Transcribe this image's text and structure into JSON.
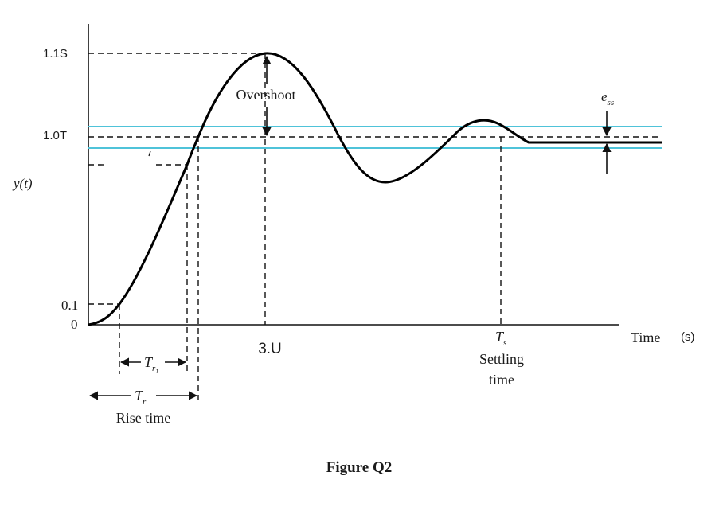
{
  "y_ticks": {
    "top": "1.1S",
    "final": "1.0T",
    "ten_percent": "0.1",
    "zero": "0"
  },
  "y_axis_label": "y(t)",
  "x_axis_label": "Time",
  "x_axis_unit": "(s)",
  "overshoot_label": "Overshoot",
  "peak_time_label": "3.U",
  "ess": {
    "main": "e",
    "sub": "ss"
  },
  "settling": {
    "symbol": "T",
    "sub": "s",
    "line1": "Settling",
    "line2": "time"
  },
  "tr1": {
    "symbol": "T",
    "sub": "r",
    "subsub": "1"
  },
  "tr": {
    "symbol": "T",
    "sub": "r"
  },
  "rise_time_label": "Rise time",
  "caption": "Figure Q2",
  "colors": {
    "curve": "#000000",
    "band": "#4fc3d9",
    "text": "#1a1a1a"
  }
}
